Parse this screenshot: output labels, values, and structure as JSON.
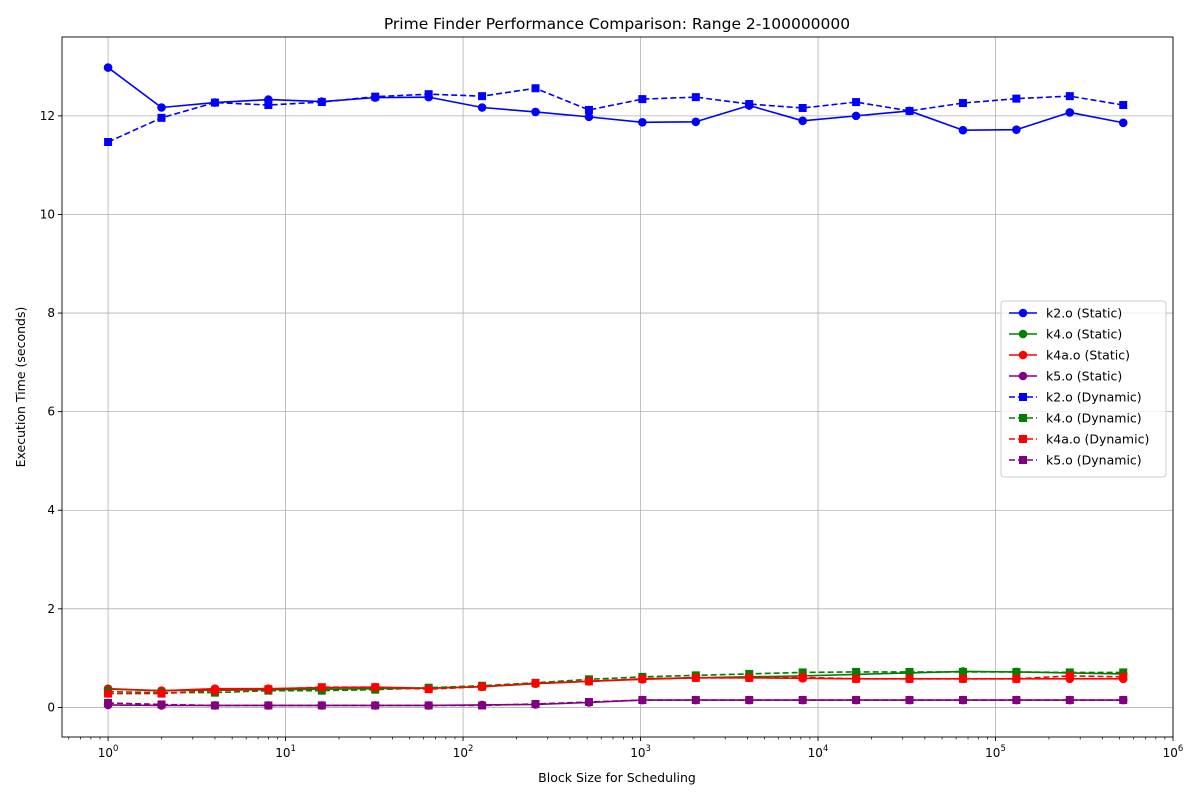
{
  "chart_data": {
    "type": "line",
    "title": "Prime Finder Performance Comparison: Range 2-100000000",
    "xlabel": "Block Size for Scheduling",
    "ylabel": "Execution Time (seconds)",
    "x_scale": "log",
    "xlim": [
      0.55,
      1000000
    ],
    "ylim": [
      -0.6,
      13.6
    ],
    "grid": true,
    "legend_position": "center-right",
    "x_ticks": [
      {
        "value": 1,
        "label": "10",
        "exp": "0"
      },
      {
        "value": 10,
        "label": "10",
        "exp": "1"
      },
      {
        "value": 100,
        "label": "10",
        "exp": "2"
      },
      {
        "value": 1000,
        "label": "10",
        "exp": "3"
      },
      {
        "value": 10000,
        "label": "10",
        "exp": "4"
      },
      {
        "value": 100000,
        "label": "10",
        "exp": "5"
      },
      {
        "value": 1000000,
        "label": "10",
        "exp": "6"
      }
    ],
    "y_ticks": [
      0,
      2,
      4,
      6,
      8,
      10,
      12
    ],
    "x": [
      1,
      2,
      4,
      8,
      16,
      32,
      64,
      128,
      256,
      512,
      1024,
      2048,
      4096,
      8192,
      16384,
      32768,
      65536,
      131072,
      262144,
      524288
    ],
    "series": [
      {
        "name": "k2.o (Static)",
        "color": "#0000ff",
        "marker": "circle",
        "linestyle": "solid",
        "values": [
          12.98,
          12.17,
          12.27,
          12.33,
          12.29,
          12.37,
          12.38,
          12.17,
          12.08,
          11.98,
          11.87,
          11.88,
          12.21,
          11.9,
          12.0,
          12.1,
          11.71,
          11.72,
          12.07,
          11.86
        ]
      },
      {
        "name": "k4.o (Static)",
        "color": "#008000",
        "marker": "circle",
        "linestyle": "solid",
        "values": [
          0.38,
          0.34,
          0.35,
          0.36,
          0.37,
          0.38,
          0.39,
          0.42,
          0.48,
          0.53,
          0.58,
          0.6,
          0.62,
          0.64,
          0.67,
          0.7,
          0.73,
          0.72,
          0.7,
          0.68
        ]
      },
      {
        "name": "k4a.o (Static)",
        "color": "#ff0000",
        "marker": "circle",
        "linestyle": "solid",
        "values": [
          0.37,
          0.34,
          0.38,
          0.38,
          0.4,
          0.41,
          0.39,
          0.42,
          0.49,
          0.53,
          0.57,
          0.6,
          0.6,
          0.59,
          0.58,
          0.58,
          0.58,
          0.58,
          0.58,
          0.58
        ]
      },
      {
        "name": "k5.o (Static)",
        "color": "#800080",
        "marker": "circle",
        "linestyle": "solid",
        "values": [
          0.05,
          0.04,
          0.04,
          0.04,
          0.04,
          0.04,
          0.04,
          0.05,
          0.06,
          0.1,
          0.15,
          0.15,
          0.15,
          0.15,
          0.15,
          0.15,
          0.15,
          0.15,
          0.15,
          0.15
        ]
      },
      {
        "name": "k2.o (Dynamic)",
        "color": "#0000ff",
        "marker": "square",
        "linestyle": "dashed",
        "values": [
          11.47,
          11.96,
          12.27,
          12.22,
          12.28,
          12.39,
          12.44,
          12.4,
          12.56,
          12.12,
          12.34,
          12.38,
          12.24,
          12.16,
          12.28,
          12.1,
          12.26,
          12.35,
          12.4,
          12.22
        ]
      },
      {
        "name": "k4.o (Dynamic)",
        "color": "#008000",
        "marker": "square",
        "linestyle": "dashed",
        "values": [
          0.32,
          0.3,
          0.3,
          0.34,
          0.34,
          0.36,
          0.4,
          0.44,
          0.5,
          0.57,
          0.62,
          0.65,
          0.68,
          0.71,
          0.72,
          0.72,
          0.72,
          0.72,
          0.71,
          0.71
        ]
      },
      {
        "name": "k4a.o (Dynamic)",
        "color": "#ff0000",
        "marker": "square",
        "linestyle": "dashed",
        "values": [
          0.28,
          0.28,
          0.34,
          0.37,
          0.41,
          0.41,
          0.37,
          0.42,
          0.49,
          0.53,
          0.58,
          0.6,
          0.6,
          0.61,
          0.58,
          0.58,
          0.58,
          0.58,
          0.64,
          0.62
        ]
      },
      {
        "name": "k5.o (Dynamic)",
        "color": "#800080",
        "marker": "square",
        "linestyle": "dashed",
        "values": [
          0.09,
          0.06,
          0.04,
          0.04,
          0.04,
          0.04,
          0.04,
          0.04,
          0.07,
          0.11,
          0.15,
          0.15,
          0.15,
          0.15,
          0.15,
          0.15,
          0.15,
          0.15,
          0.15,
          0.15
        ]
      }
    ]
  }
}
